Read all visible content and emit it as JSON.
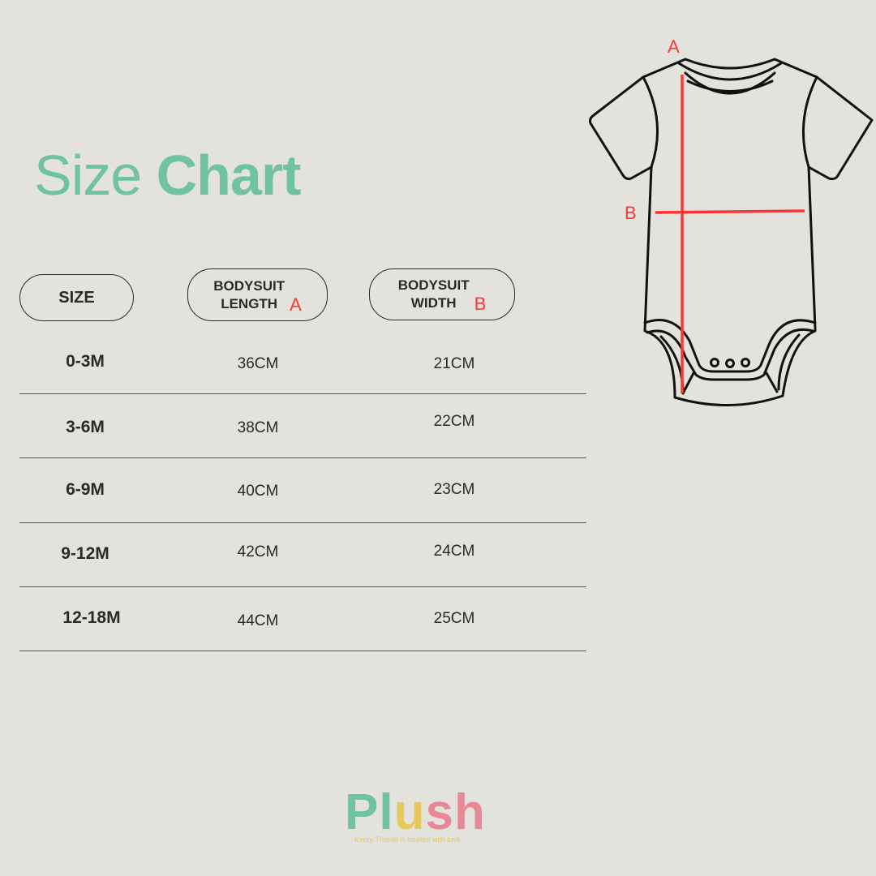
{
  "title": {
    "light": "Size",
    "bold": "Chart"
  },
  "headers": {
    "size": "SIZE",
    "length": {
      "line1": "BODYSUIT",
      "line2": "LENGTH",
      "marker": "A"
    },
    "width": {
      "line1": "BODYSUIT",
      "line2": "WIDTH",
      "marker": "B"
    }
  },
  "rows": [
    {
      "size": "0-3M",
      "length": "36CM",
      "width": "21CM"
    },
    {
      "size": "3-6M",
      "length": "38CM",
      "width": "22CM"
    },
    {
      "size": "6-9M",
      "length": "40CM",
      "width": "23CM"
    },
    {
      "size": "9-12M",
      "length": "42CM",
      "width": "24CM"
    },
    {
      "size": "12-18M",
      "length": "44CM",
      "width": "25CM"
    }
  ],
  "diagram": {
    "label_a": "A",
    "label_b": "B",
    "measure_color": "#ff3535"
  },
  "brand": {
    "p": "P",
    "l": "l",
    "u": "u",
    "s": "s",
    "h": "h",
    "tagline": "Every Thread is treated with love",
    "colors": {
      "green": "#6fc2a2",
      "yellow": "#e8c85a",
      "pink": "#e98895"
    }
  },
  "colors": {
    "title": "#6fc2a2",
    "background": "#e3e2dd"
  }
}
